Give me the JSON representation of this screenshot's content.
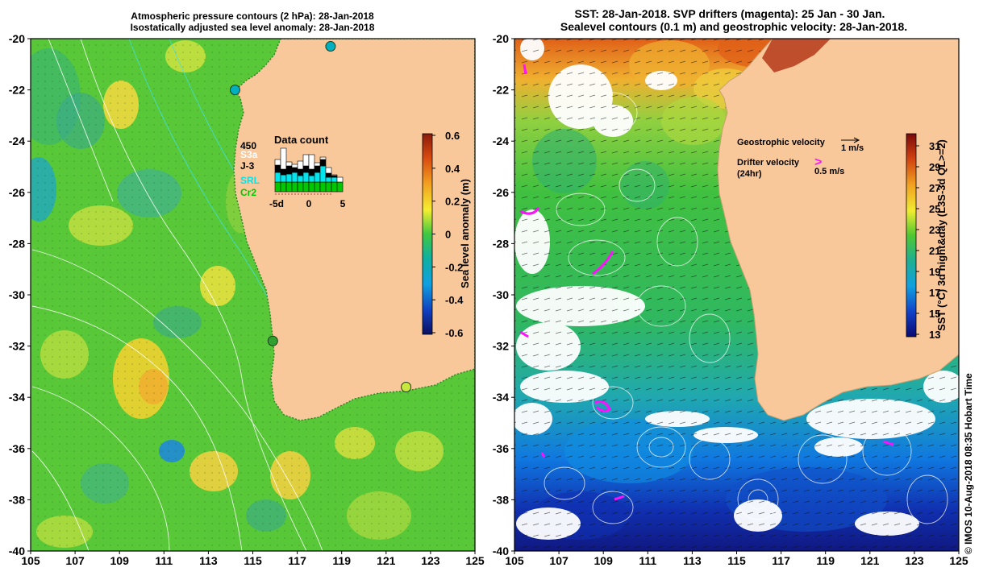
{
  "left_panel": {
    "title_line1": "Atmospheric pressure contours (2 hPa): 28-Jan-2018",
    "title_line2": "Isostatically adjusted sea level anomaly: 28-Jan-2018",
    "y_ticks": [
      "-20",
      "-22",
      "-24",
      "-26",
      "-28",
      "-30",
      "-32",
      "-34",
      "-36",
      "-38",
      "-40"
    ],
    "x_ticks": [
      "105",
      "107",
      "109",
      "111",
      "113",
      "115",
      "117",
      "119",
      "121",
      "123",
      "125"
    ],
    "colorbar": {
      "label": "Sea level anomaly (m)",
      "ticks": [
        "0.6",
        "0.4",
        "0.2",
        "0",
        "-0.2",
        "-0.4",
        "-0.6"
      ]
    },
    "data_count": {
      "title": "Data count",
      "max_label": "450",
      "legend": [
        {
          "label": "S3a",
          "color": "#ffffff"
        },
        {
          "label": "J-3",
          "color": "#000000"
        },
        {
          "label": "SRL",
          "color": "#00e5ee"
        },
        {
          "label": "Cr2",
          "color": "#00c800"
        }
      ],
      "x_ticks": [
        "-5d",
        "0",
        "5"
      ]
    },
    "tide_gauges": [
      {
        "lon": 118.5,
        "lat": -20.3,
        "color": "#00b0c0"
      },
      {
        "lon": 114.2,
        "lat": -22.0,
        "color": "#00b0c0"
      },
      {
        "lon": 115.9,
        "lat": -31.8,
        "color": "#30a030"
      },
      {
        "lon": 121.9,
        "lat": -33.6,
        "color": "#c8e840"
      }
    ]
  },
  "right_panel": {
    "title_line1": "SST: 28-Jan-2018. SVP drifters (magenta): 25 Jan - 30 Jan.",
    "title_line2": "Sealevel contours (0.1 m) and geostrophic velocity: 28-Jan-2018.",
    "y_ticks": [
      "-20",
      "-22",
      "-24",
      "-26",
      "-28",
      "-30",
      "-32",
      "-34",
      "-36",
      "-38",
      "-40"
    ],
    "x_ticks": [
      "105",
      "107",
      "109",
      "111",
      "113",
      "115",
      "117",
      "119",
      "121",
      "123",
      "125"
    ],
    "colorbar": {
      "label": "SST (°C) 3d night&day (L3S-3d QL>=2)",
      "ticks": [
        "31",
        "29",
        "27",
        "25",
        "23",
        "21",
        "19",
        "17",
        "15",
        "13"
      ]
    },
    "legend": {
      "geo_label": "Geostrophic velocity",
      "geo_scale": "1 m/s",
      "drifter_label": "Drifter velocity",
      "drifter_sub": "(24hr)",
      "drifter_symbol": ">",
      "drifter_scale": "0.5 m/s"
    }
  },
  "credit": "© IMOS 10-Aug-2018 08:35 Hobart Time"
}
